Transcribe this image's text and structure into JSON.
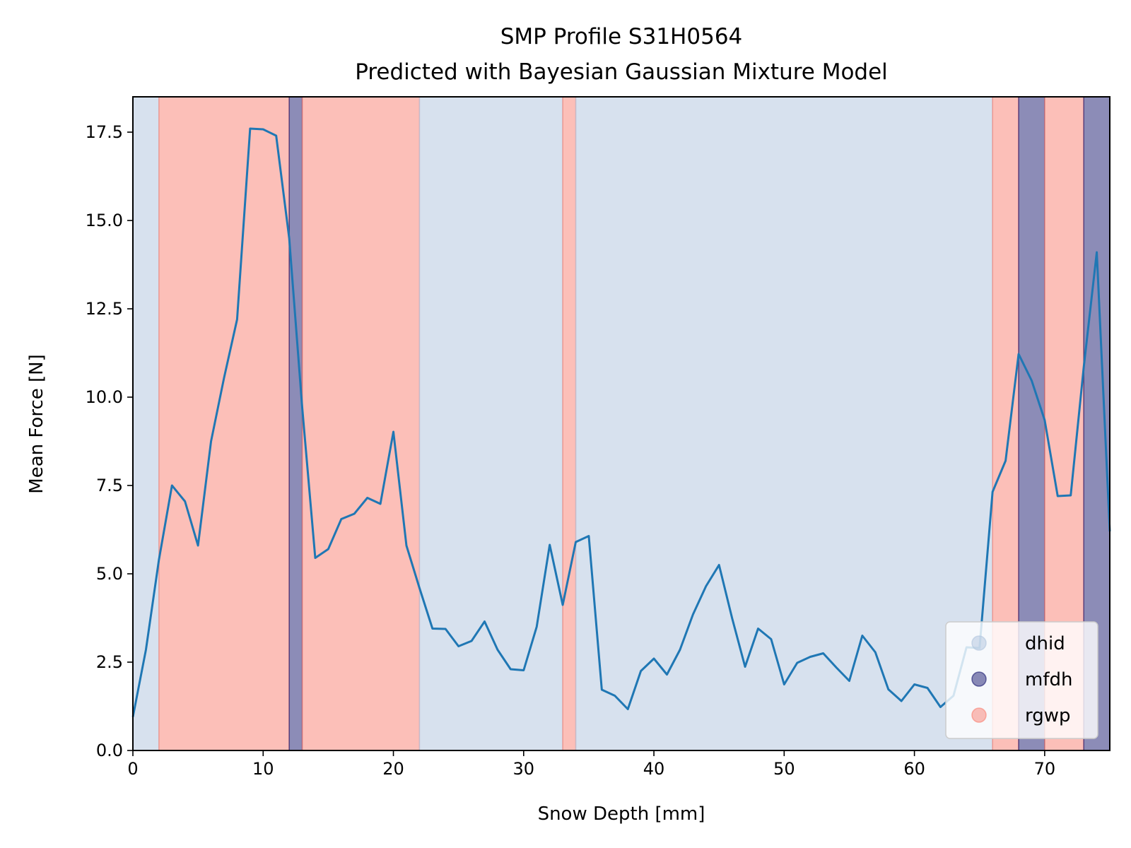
{
  "chart_data": {
    "type": "line",
    "title": "SMP Profile S31H0564",
    "subtitle": "Predicted with Bayesian Gaussian Mixture Model",
    "xlabel": "Snow Depth [mm]",
    "ylabel": "Mean Force [N]",
    "xlim": [
      0,
      75
    ],
    "ylim": [
      0,
      18.5
    ],
    "xticks": [
      0,
      10,
      20,
      30,
      40,
      50,
      60,
      70
    ],
    "xtick_labels": [
      "0",
      "10",
      "20",
      "30",
      "40",
      "50",
      "60",
      "70"
    ],
    "yticks": [
      0,
      2.5,
      5,
      7.5,
      10,
      12.5,
      15,
      17.5
    ],
    "ytick_labels": [
      "0.0",
      "2.5",
      "5.0",
      "7.5",
      "10.0",
      "12.5",
      "15.0",
      "17.5"
    ],
    "grid": false,
    "legend_position": "lower-right",
    "classes": [
      {
        "name": "dhid",
        "color": "#b0c4de"
      },
      {
        "name": "mfdh",
        "color": "#191970"
      },
      {
        "name": "rgwp",
        "color": "#fa8072"
      }
    ],
    "bands": [
      {
        "start": 0,
        "end": 2,
        "class": "dhid"
      },
      {
        "start": 2,
        "end": 12,
        "class": "rgwp"
      },
      {
        "start": 12,
        "end": 13,
        "class": "mfdh"
      },
      {
        "start": 13,
        "end": 22,
        "class": "rgwp"
      },
      {
        "start": 22,
        "end": 33,
        "class": "dhid"
      },
      {
        "start": 33,
        "end": 34,
        "class": "rgwp"
      },
      {
        "start": 34,
        "end": 66,
        "class": "dhid"
      },
      {
        "start": 66,
        "end": 68,
        "class": "rgwp"
      },
      {
        "start": 68,
        "end": 70,
        "class": "mfdh"
      },
      {
        "start": 70,
        "end": 73,
        "class": "rgwp"
      },
      {
        "start": 73,
        "end": 75,
        "class": "mfdh"
      }
    ],
    "series": [
      {
        "color": "#1f77b4",
        "x": [
          0,
          1,
          2,
          3,
          4,
          5,
          6,
          7,
          8,
          9,
          10,
          11,
          12,
          13,
          14,
          15,
          16,
          17,
          18,
          19,
          20,
          21,
          22,
          23,
          24,
          25,
          26,
          27,
          28,
          29,
          30,
          31,
          32,
          33,
          34,
          35,
          36,
          37,
          38,
          39,
          40,
          41,
          42,
          43,
          44,
          45,
          46,
          47,
          48,
          49,
          50,
          51,
          52,
          53,
          54,
          55,
          56,
          57,
          58,
          59,
          60,
          61,
          62,
          63,
          64,
          65,
          66,
          67,
          68,
          69,
          70,
          71,
          72,
          73,
          74,
          75
        ],
        "y": [
          0.95,
          2.85,
          5.4,
          7.5,
          7.05,
          5.8,
          8.75,
          10.55,
          12.2,
          17.6,
          17.58,
          17.4,
          14.5,
          9.7,
          5.45,
          5.7,
          6.55,
          6.7,
          7.15,
          6.98,
          9.02,
          5.8,
          4.6,
          3.45,
          3.44,
          2.95,
          3.1,
          3.65,
          2.85,
          2.3,
          2.27,
          3.5,
          5.82,
          4.12,
          5.9,
          6.07,
          1.72,
          1.55,
          1.17,
          2.25,
          2.6,
          2.15,
          2.85,
          3.85,
          4.65,
          5.25,
          3.75,
          2.37,
          3.45,
          3.15,
          1.87,
          2.48,
          2.65,
          2.75,
          2.35,
          1.97,
          3.25,
          2.78,
          1.73,
          1.4,
          1.87,
          1.77,
          1.23,
          1.55,
          2.92,
          2.9,
          7.32,
          8.2,
          11.22,
          10.47,
          9.35,
          7.2,
          7.22,
          10.85,
          14.1,
          6.2
        ]
      }
    ]
  }
}
